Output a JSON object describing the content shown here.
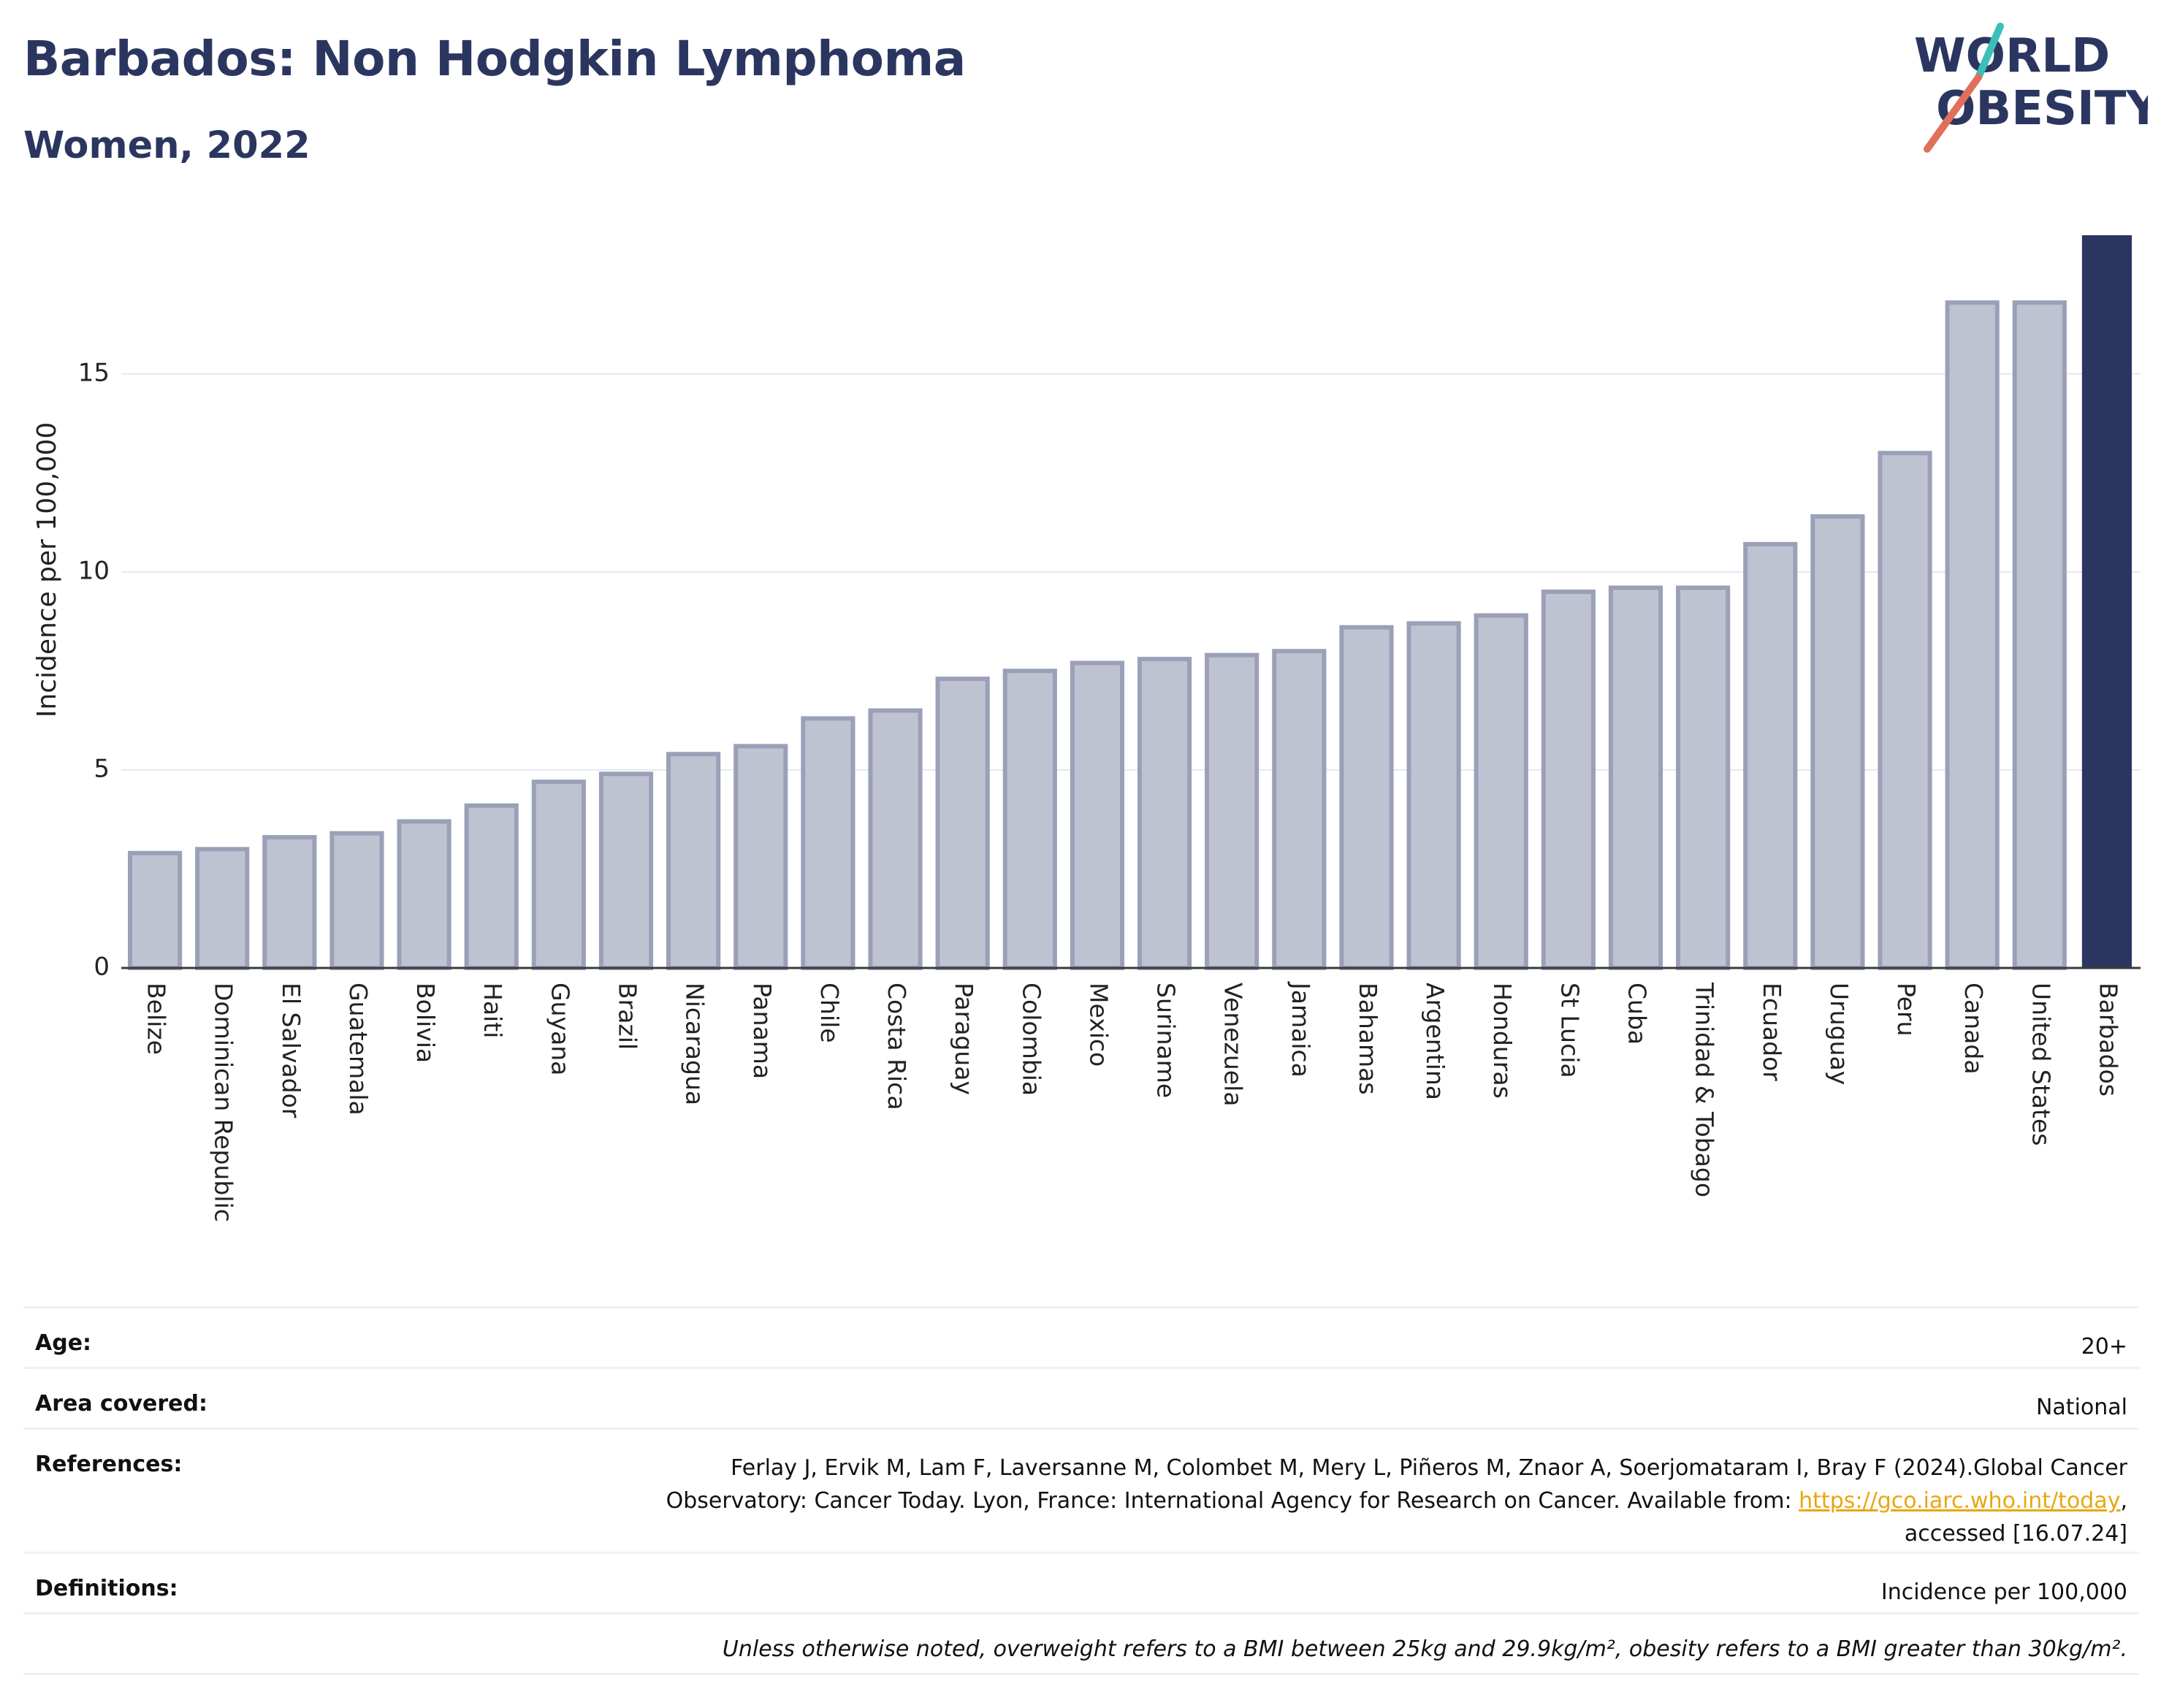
{
  "header": {
    "title": "Barbados: Non Hodgkin Lymphoma",
    "subtitle": "Women, 2022"
  },
  "logo": {
    "line1": "WORLD",
    "line2": "OBESITY",
    "color_text": "#2b3660",
    "color_slash_top": "#3bbfb8",
    "color_slash_bottom": "#e0705a"
  },
  "colors": {
    "bar_fill": "#bfc3d1",
    "bar_stroke": "#9aa0b8",
    "highlight": "#2b3660",
    "grid": "#e6e8f0",
    "axis_text": "#222222"
  },
  "chart_data": {
    "type": "bar",
    "ylabel": "Incidence per 100,000",
    "ylim": [
      0,
      18.5
    ],
    "yticks": [
      0,
      5,
      10,
      15
    ],
    "grid": true,
    "highlight_category": "Barbados",
    "categories": [
      "Belize",
      "Dominican Republic",
      "El Salvador",
      "Guatemala",
      "Bolivia",
      "Haiti",
      "Guyana",
      "Brazil",
      "Nicaragua",
      "Panama",
      "Chile",
      "Costa Rica",
      "Paraguay",
      "Colombia",
      "Mexico",
      "Suriname",
      "Venezuela",
      "Jamaica",
      "Bahamas",
      "Argentina",
      "Honduras",
      "St Lucia",
      "Cuba",
      "Trinidad & Tobago",
      "Ecuador",
      "Uruguay",
      "Peru",
      "Canada",
      "United States",
      "Barbados"
    ],
    "values": [
      2.9,
      3.0,
      3.3,
      3.4,
      3.7,
      4.1,
      4.7,
      4.9,
      5.4,
      5.6,
      6.3,
      6.5,
      7.3,
      7.5,
      7.7,
      7.8,
      7.9,
      8.0,
      8.6,
      8.7,
      8.9,
      9.5,
      9.6,
      9.6,
      10.7,
      11.4,
      13.0,
      16.8,
      16.8,
      18.5
    ]
  },
  "info": {
    "age_label": "Age:",
    "age_value": "20+",
    "area_label": "Area covered:",
    "area_value": "National",
    "references_label": "References:",
    "references_line1": "Ferlay J, Ervik M, Lam F, Laversanne M, Colombet M, Mery L, Piñeros M, Znaor A, Soerjomataram I, Bray F (2024).Global Cancer",
    "references_line2_pre": "Observatory: Cancer Today. Lyon, France: International Agency for Research on Cancer. Available from: ",
    "references_link": "https://gco.iarc.who.int/today",
    "references_line2_post": ",",
    "references_line3": "accessed [16.07.24]",
    "definitions_label": "Definitions:",
    "definitions_value": "Incidence per 100,000",
    "note": "Unless otherwise noted, overweight refers to a BMI between 25kg and 29.9kg/m², obesity refers to a BMI greater than 30kg/m²."
  }
}
